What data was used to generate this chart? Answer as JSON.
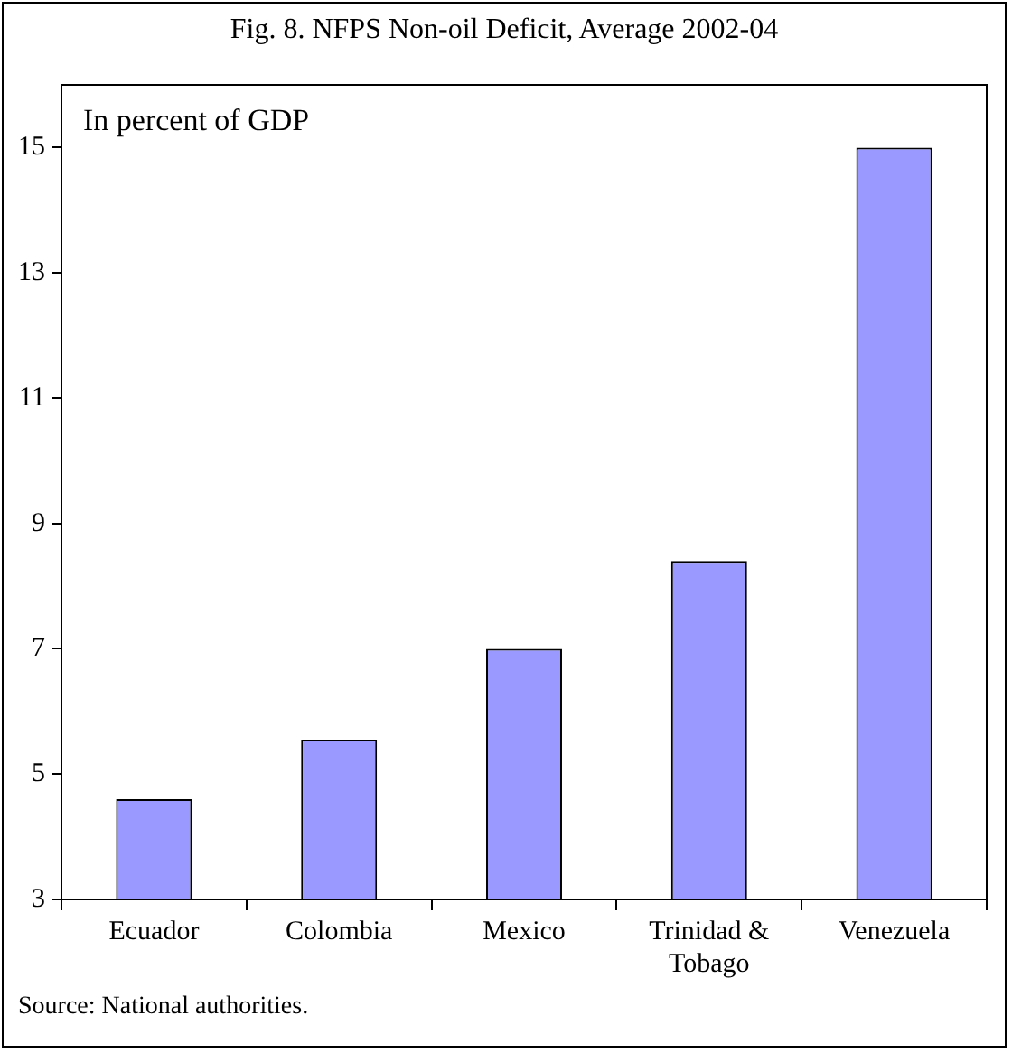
{
  "chart_data": {
    "type": "bar",
    "title": "Fig. 8. NFPS Non-oil Deficit, Average 2002-04",
    "categories": [
      "Ecuador",
      "Colombia",
      "Mexico",
      "Trinidad & Tobago",
      "Venezuela"
    ],
    "values": [
      4.6,
      5.55,
      7.0,
      8.4,
      15.0
    ],
    "color": "#9999ff",
    "ylim": [
      3,
      16
    ],
    "yticks": [
      3,
      5,
      7,
      9,
      11,
      13,
      15
    ],
    "grid": false,
    "annotations": [
      "In percent of GDP",
      "Source: National authorities."
    ]
  }
}
